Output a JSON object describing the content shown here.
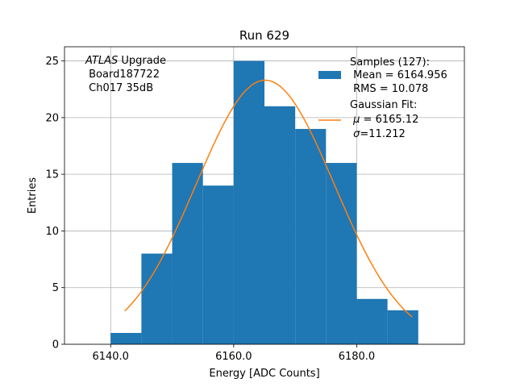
{
  "chart_data": {
    "type": "bar",
    "title": "Run 629",
    "xlabel": "Energy [ADC Counts]",
    "ylabel": "Entries",
    "xlim": [
      6132.5,
      6197.5
    ],
    "ylim": [
      0,
      26.25
    ],
    "xticks": [
      6140.0,
      6160.0,
      6180.0
    ],
    "xtick_labels": [
      "6140.0",
      "6160.0",
      "6180.0"
    ],
    "yticks": [
      0,
      5,
      10,
      15,
      20,
      25
    ],
    "ytick_labels": [
      "0",
      "5",
      "10",
      "15",
      "20",
      "25"
    ],
    "grid": true,
    "histogram": {
      "bin_edges": [
        6140,
        6145,
        6150,
        6155,
        6160,
        6165,
        6170,
        6175,
        6180,
        6185,
        6190
      ],
      "counts": [
        1,
        8,
        16,
        14,
        25,
        21,
        19,
        16,
        4,
        3
      ],
      "color": "#1f77b4"
    },
    "fit": {
      "mu": 6165.12,
      "sigma": 11.212,
      "amplitude": 23.3,
      "x_range": [
        6142.3,
        6189.0
      ],
      "color": "#ff7f0e"
    },
    "annotation": {
      "line1_italic": "ATLAS",
      "line1_rest": " Upgrade",
      "line2": " Board187722",
      "line3": " Ch017 35dB"
    },
    "legend": {
      "placement": "top-right",
      "samples_line1": "Samples (127):",
      "samples_line2": " Mean = 6164.956",
      "samples_line3": " RMS = 10.078",
      "fit_line1": "Gaussian Fit:",
      "fit_line2_pre": " ",
      "fit_line2_sym": "μ",
      "fit_line2_post": " = 6165.12",
      "fit_line3_pre": " ",
      "fit_line3_sym": "σ",
      "fit_line3_post": "=11.212"
    }
  }
}
